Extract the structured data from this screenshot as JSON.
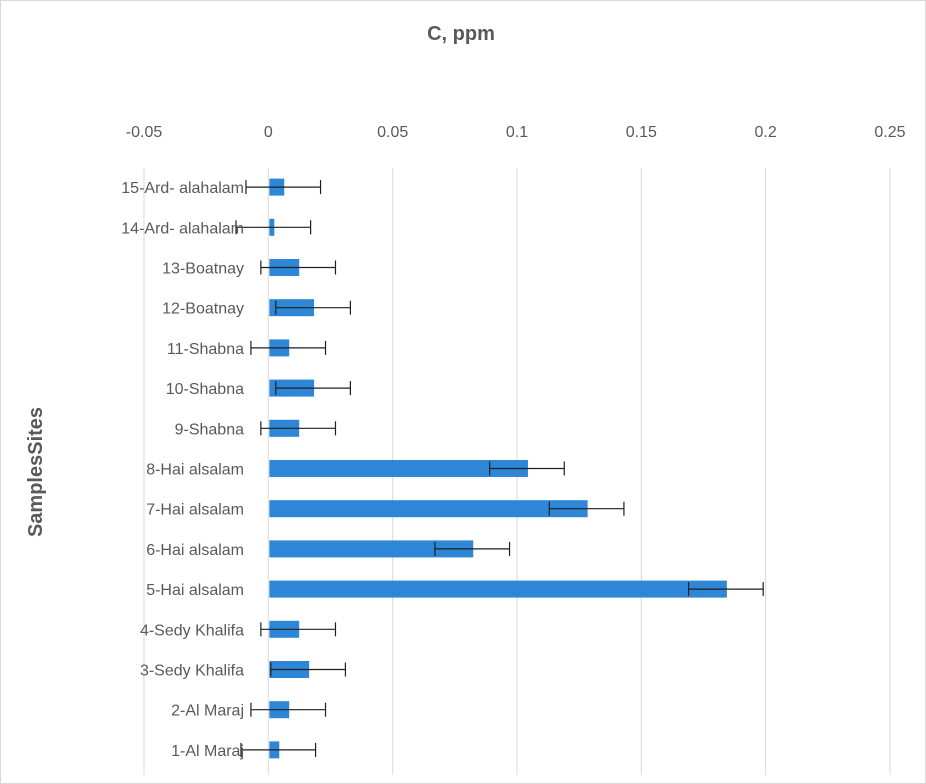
{
  "chart_data": {
    "type": "bar",
    "orientation": "horizontal",
    "title": "C, ppm",
    "xlabel": "",
    "ylabel": "SamplesSites",
    "xlim": [
      -0.05,
      0.25
    ],
    "x_ticks": [
      "-0.05",
      "0",
      "0.05",
      "0.1",
      "0.15",
      "0.2",
      "0.25"
    ],
    "x_axis_position": "top",
    "grid": true,
    "legend": "none",
    "bar_color": "#2e86d6",
    "categories": [
      "1-Al Maraj",
      "2-Al Maraj",
      "3-Sedy Khalifa",
      "4-Sedy Khalifa",
      "5-Hai alsalam",
      "6-Hai alsalam",
      "7-Hai alsalam",
      "8-Hai alsalam",
      "9-Shabna",
      "10-Shabna",
      "11-Shabna",
      "12-Boatnay",
      "13-Boatnay",
      "14-Ard- alahalam",
      "15-Ard- alahalam"
    ],
    "values": [
      0.004,
      0.008,
      0.016,
      0.012,
      0.184,
      0.082,
      0.128,
      0.104,
      0.012,
      0.018,
      0.008,
      0.018,
      0.012,
      0.002,
      0.006
    ],
    "error": [
      0.015,
      0.015,
      0.015,
      0.015,
      0.015,
      0.015,
      0.015,
      0.015,
      0.015,
      0.015,
      0.015,
      0.015,
      0.015,
      0.015,
      0.015
    ]
  }
}
